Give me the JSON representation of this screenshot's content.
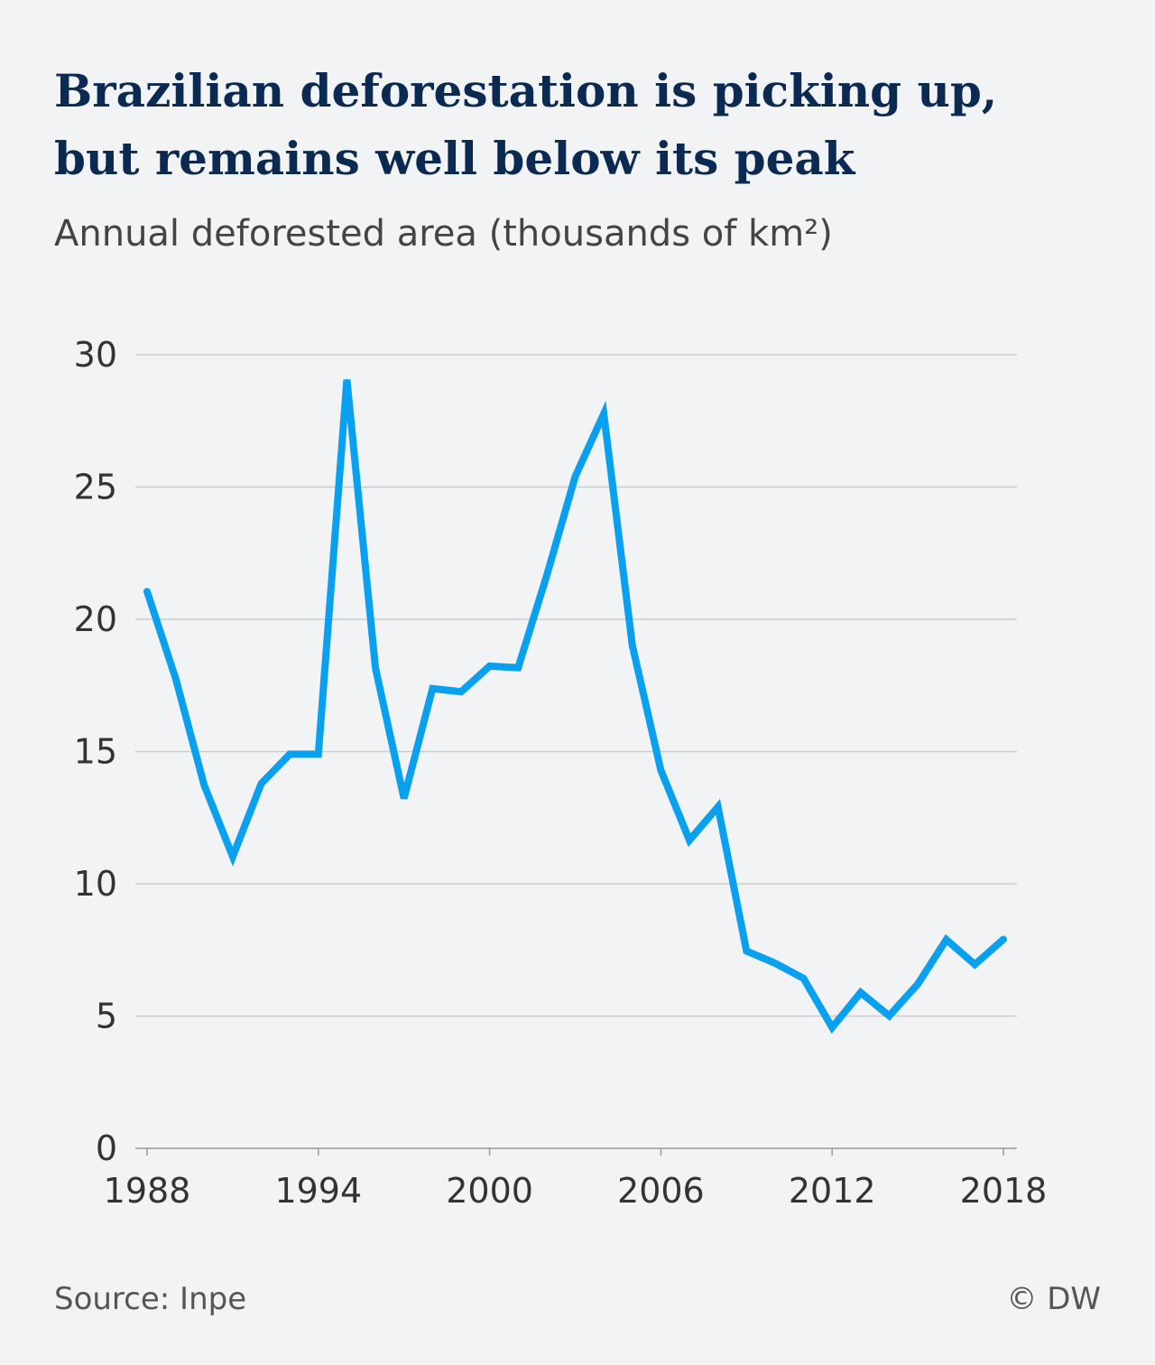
{
  "chart_data": {
    "type": "line",
    "title": [
      "Brazilian deforestation is picking up,",
      "but remains well below its peak"
    ],
    "subtitle": "Annual deforested area (thousands of km²)",
    "source": "Source: Inpe",
    "credit": "© DW",
    "x": [
      1988,
      1989,
      1990,
      1991,
      1992,
      1993,
      1994,
      1995,
      1996,
      1997,
      1998,
      1999,
      2000,
      2001,
      2002,
      2003,
      2004,
      2005,
      2006,
      2007,
      2008,
      2009,
      2010,
      2011,
      2012,
      2013,
      2014,
      2015,
      2016,
      2017,
      2018
    ],
    "series": [
      {
        "color": "#0aa0f0",
        "values": [
          21.05,
          17.77,
          13.73,
          11.03,
          13.79,
          14.9,
          14.9,
          29.06,
          18.16,
          13.23,
          17.38,
          17.26,
          18.23,
          18.17,
          21.65,
          25.4,
          27.77,
          19.01,
          14.29,
          11.65,
          12.91,
          7.46,
          7.0,
          6.42,
          4.57,
          5.89,
          5.01,
          6.21,
          7.89,
          6.95,
          7.9
        ]
      }
    ],
    "ylim": [
      0,
      30
    ],
    "yticks": [
      0,
      5,
      10,
      15,
      20,
      25,
      30
    ],
    "xlim": [
      1988,
      2018
    ],
    "xticks": [
      1988,
      1994,
      2000,
      2006,
      2012,
      2018
    ],
    "grid": true
  }
}
